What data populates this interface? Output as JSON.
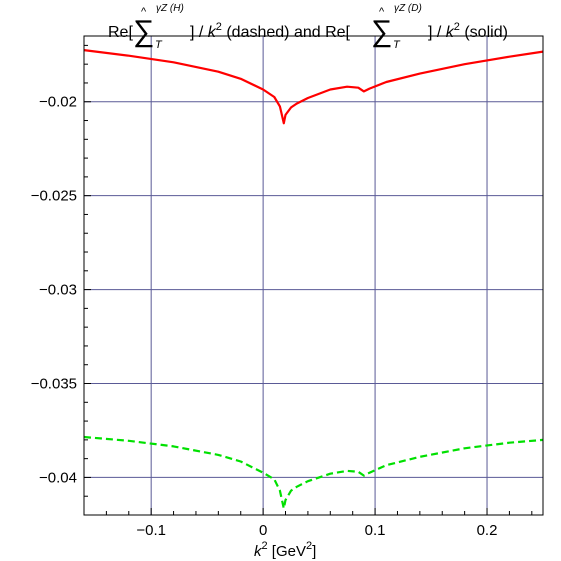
{
  "chart_data": {
    "type": "line",
    "title": {
      "re1": "Re[",
      "operator": "∑",
      "hat": "^",
      "sub": "T",
      "sup1": "γZ (H)",
      "mid1": "] / ",
      "k": "k",
      "exp": "2",
      "dashed_label": " (dashed)  and  ",
      "re2": "Re[",
      "sup2": "γZ (D)",
      "mid2": "] / ",
      "solid_label": " (solid)"
    },
    "xlabel": {
      "k": "k",
      "exp": "2",
      "unit_open": " [GeV",
      "unit_exp": "2",
      "unit_close": "]"
    },
    "xlim": [
      -0.16,
      0.25
    ],
    "ylim": [
      -0.042,
      -0.0165
    ],
    "x_ticks": [
      {
        "value": -0.1,
        "label": "−0.1"
      },
      {
        "value": 0,
        "label": "0"
      },
      {
        "value": 0.1,
        "label": "0.1"
      },
      {
        "value": 0.2,
        "label": "0.2"
      }
    ],
    "y_ticks": [
      {
        "value": -0.02,
        "label": "−0.02"
      },
      {
        "value": -0.025,
        "label": "−0.025"
      },
      {
        "value": -0.03,
        "label": "−0.03"
      },
      {
        "value": -0.035,
        "label": "−0.035"
      },
      {
        "value": -0.04,
        "label": "−0.04"
      }
    ],
    "grid": true,
    "series": [
      {
        "style": "solid",
        "color": "#ff0000",
        "points": [
          [
            -0.16,
            -0.01725
          ],
          [
            -0.12,
            -0.01755
          ],
          [
            -0.08,
            -0.0179
          ],
          [
            -0.04,
            -0.0184
          ],
          [
            -0.02,
            -0.01878
          ],
          [
            0.0,
            -0.01935
          ],
          [
            0.01,
            -0.01975
          ],
          [
            0.015,
            -0.02025
          ],
          [
            0.0185,
            -0.02115
          ],
          [
            0.02,
            -0.0207
          ],
          [
            0.025,
            -0.0203
          ],
          [
            0.03,
            -0.0201
          ],
          [
            0.04,
            -0.0198
          ],
          [
            0.06,
            -0.01935
          ],
          [
            0.075,
            -0.0192
          ],
          [
            0.085,
            -0.01925
          ],
          [
            0.09,
            -0.01945
          ],
          [
            0.095,
            -0.0193
          ],
          [
            0.11,
            -0.01895
          ],
          [
            0.14,
            -0.0185
          ],
          [
            0.18,
            -0.018
          ],
          [
            0.22,
            -0.0176
          ],
          [
            0.25,
            -0.01733
          ]
        ]
      },
      {
        "style": "dashed",
        "color": "#00e000",
        "points": [
          [
            -0.16,
            -0.03785
          ],
          [
            -0.12,
            -0.03805
          ],
          [
            -0.08,
            -0.03835
          ],
          [
            -0.04,
            -0.0388
          ],
          [
            -0.02,
            -0.03915
          ],
          [
            0.0,
            -0.03975
          ],
          [
            0.01,
            -0.0401
          ],
          [
            0.015,
            -0.0407
          ],
          [
            0.0185,
            -0.04165
          ],
          [
            0.02,
            -0.0412
          ],
          [
            0.025,
            -0.0407
          ],
          [
            0.03,
            -0.0405
          ],
          [
            0.04,
            -0.0402
          ],
          [
            0.06,
            -0.0398
          ],
          [
            0.075,
            -0.03965
          ],
          [
            0.085,
            -0.0397
          ],
          [
            0.09,
            -0.0399
          ],
          [
            0.095,
            -0.03975
          ],
          [
            0.11,
            -0.03935
          ],
          [
            0.14,
            -0.0389
          ],
          [
            0.18,
            -0.03845
          ],
          [
            0.22,
            -0.03815
          ],
          [
            0.25,
            -0.038
          ]
        ]
      }
    ]
  },
  "colors": {
    "frame": "#000000",
    "grid": "#5a5a96",
    "background": "#ffffff"
  }
}
